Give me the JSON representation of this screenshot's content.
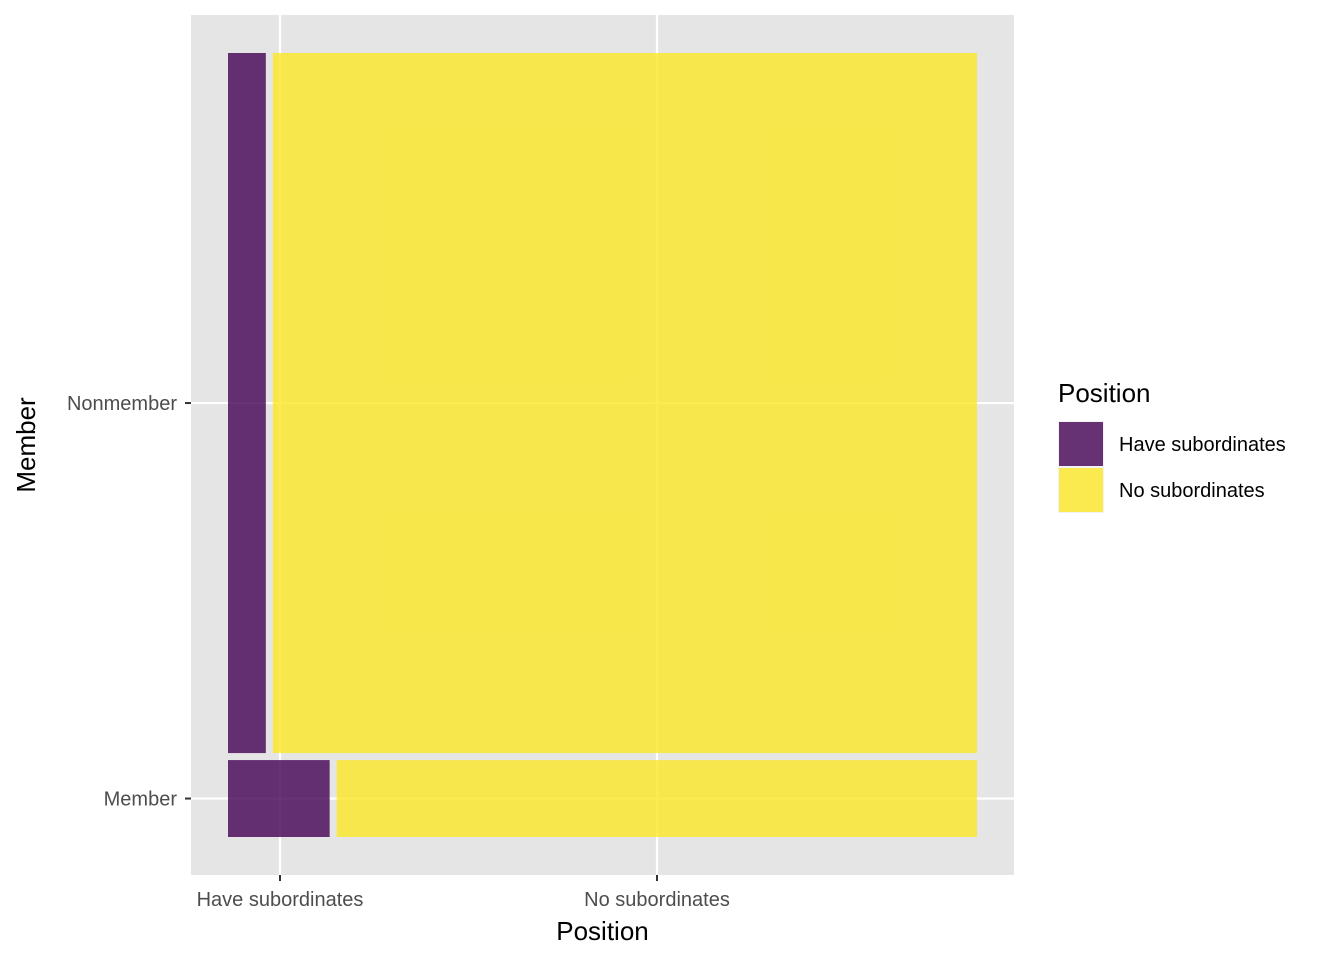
{
  "chart_data": {
    "type": "mosaic",
    "xlabel": "Position",
    "ylabel": "Member",
    "x_categories": [
      "Have subordinates",
      "No subordinates"
    ],
    "y_categories": [
      "Nonmember",
      "Member"
    ],
    "legend": {
      "title": "Position",
      "position": "right",
      "entries": [
        {
          "label": "Have subordinates",
          "color": "#440154"
        },
        {
          "label": "No subordinates",
          "color": "#FDE725"
        }
      ]
    },
    "fill_alpha": 0.8,
    "panel_background": "#E5E5E5",
    "grid": true,
    "rows": [
      {
        "member": "Nonmember",
        "proportion": 0.901,
        "cells": [
          {
            "position": "Have subordinates",
            "proportion": 0.051
          },
          {
            "position": "No subordinates",
            "proportion": 0.949
          }
        ]
      },
      {
        "member": "Member",
        "proportion": 0.099,
        "cells": [
          {
            "position": "Have subordinates",
            "proportion": 0.137
          },
          {
            "position": "No subordinates",
            "proportion": 0.863
          }
        ]
      }
    ]
  }
}
